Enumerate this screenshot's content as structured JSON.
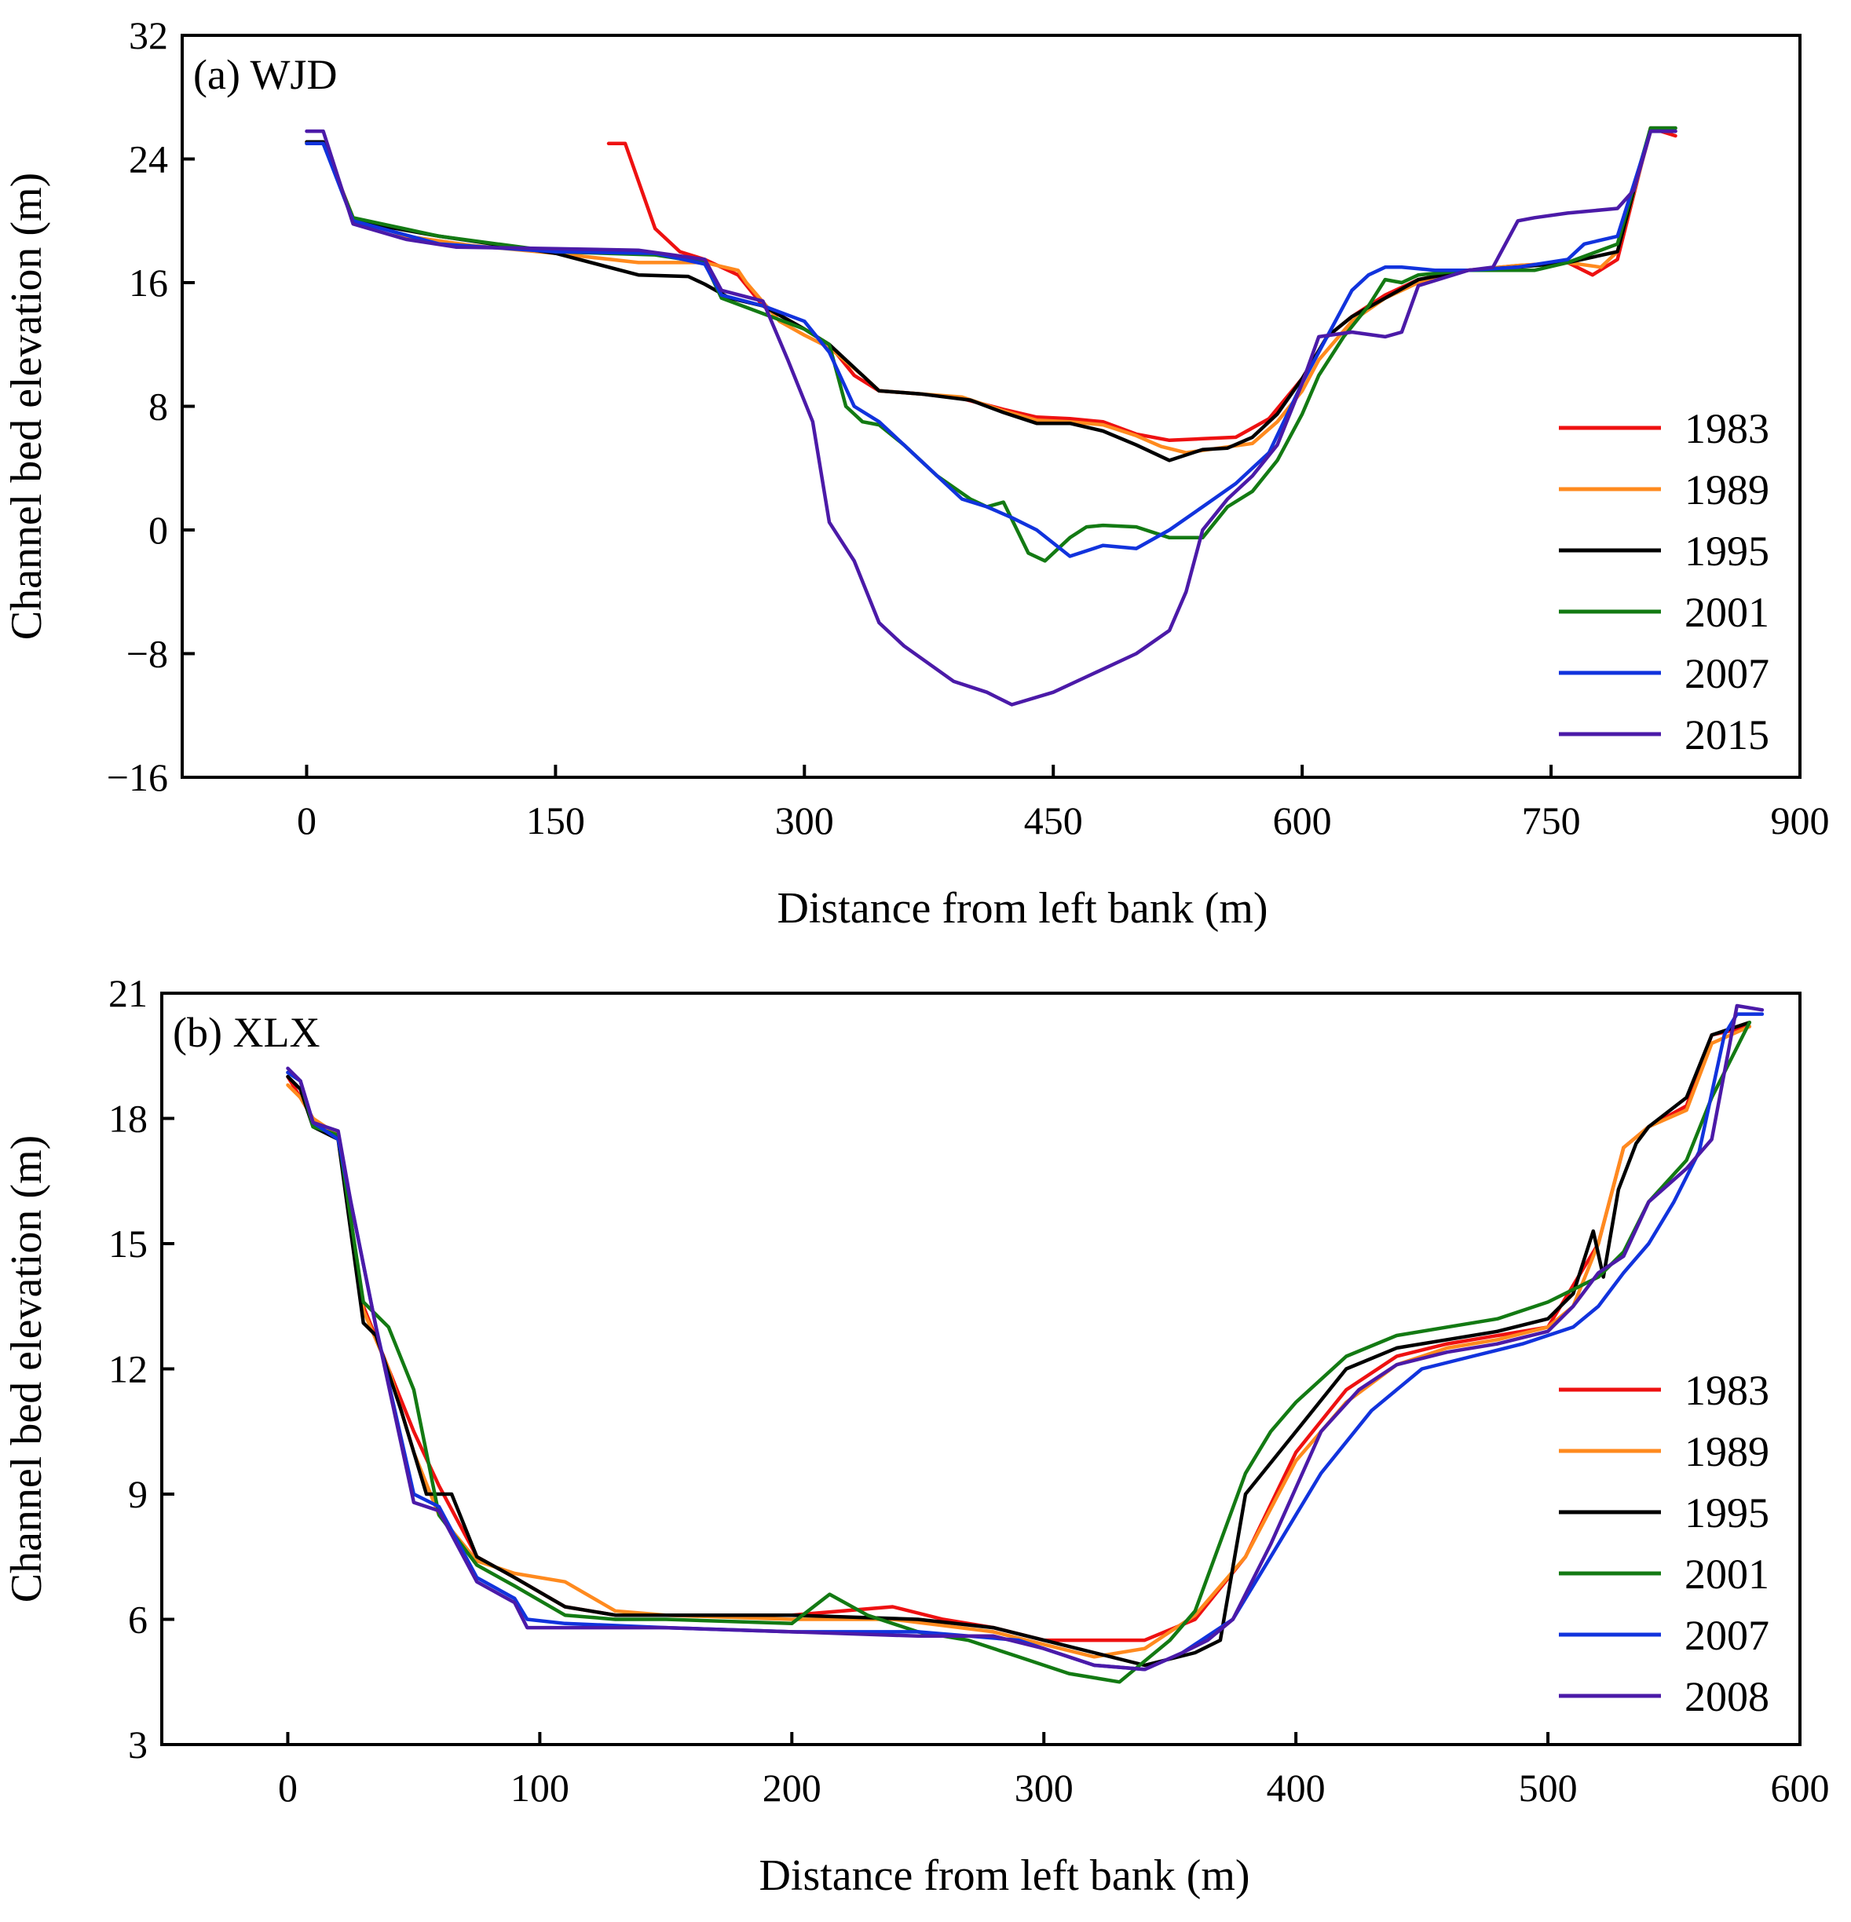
{
  "chart_data": [
    {
      "type": "line",
      "panel_label": "(a) WJD",
      "xlabel": "Distance from left bank (m)",
      "ylabel": "Channel bed elevation (m)",
      "xlim": [
        -75,
        900
      ],
      "ylim": [
        -16,
        32
      ],
      "xticks": [
        0,
        150,
        300,
        450,
        600,
        750,
        900
      ],
      "yticks": [
        -16,
        -8,
        0,
        8,
        16,
        24,
        32
      ],
      "xtick_labels": [
        "0",
        "150",
        "300",
        "450",
        "600",
        "750",
        "900"
      ],
      "ytick_labels": [
        "−16",
        "−8",
        "0",
        "8",
        "16",
        "24",
        "32"
      ],
      "grid": false,
      "legend_position": "lower-right",
      "series": [
        {
          "name": "1983",
          "color": "#ee1111",
          "x": [
            182,
            192,
            210,
            225,
            240,
            260,
            275,
            300,
            315,
            330,
            345,
            370,
            395,
            420,
            440,
            460,
            480,
            500,
            520,
            540,
            560,
            580,
            600,
            615,
            630,
            650,
            670,
            700,
            730,
            760,
            775,
            790,
            810,
            825
          ],
          "y": [
            25.0,
            25.0,
            19.5,
            18.0,
            17.5,
            16.5,
            14.5,
            13.0,
            12.0,
            10.0,
            9.0,
            8.8,
            8.5,
            7.8,
            7.3,
            7.2,
            7.0,
            6.2,
            5.8,
            5.9,
            6.0,
            7.2,
            9.8,
            12.5,
            13.8,
            15.2,
            16.2,
            16.8,
            17.1,
            17.3,
            16.5,
            17.5,
            26.0,
            25.5
          ]
        },
        {
          "name": "1989",
          "color": "#ff8a1e",
          "x": [
            0,
            10,
            28,
            60,
            100,
            150,
            200,
            240,
            260,
            265,
            285,
            300,
            315,
            335,
            345,
            370,
            395,
            420,
            440,
            460,
            480,
            500,
            515,
            530,
            550,
            570,
            585,
            600,
            610,
            630,
            650,
            670,
            700,
            730,
            760,
            780,
            790,
            810,
            825
          ],
          "y": [
            25.1,
            25.1,
            20.2,
            19.0,
            18.4,
            17.9,
            17.3,
            17.3,
            16.8,
            16.0,
            13.5,
            12.6,
            11.8,
            10.0,
            9.0,
            8.8,
            8.6,
            7.7,
            7.1,
            7.0,
            6.8,
            6.1,
            5.4,
            5.0,
            5.3,
            5.6,
            7.0,
            9.0,
            11.0,
            13.5,
            15.0,
            16.0,
            16.8,
            17.1,
            17.3,
            17.0,
            18.0,
            25.8,
            25.8
          ]
        },
        {
          "name": "1995",
          "color": "#000000",
          "x": [
            0,
            10,
            28,
            80,
            150,
            200,
            230,
            240,
            255,
            275,
            300,
            315,
            335,
            345,
            370,
            400,
            420,
            440,
            460,
            480,
            500,
            520,
            540,
            555,
            570,
            585,
            600,
            615,
            630,
            650,
            670,
            700,
            730,
            760,
            790,
            810,
            825
          ],
          "y": [
            25.1,
            25.1,
            20.0,
            19.0,
            17.9,
            16.5,
            16.4,
            15.9,
            15.0,
            14.5,
            13.0,
            12.0,
            10.0,
            9.0,
            8.8,
            8.4,
            7.6,
            6.9,
            6.9,
            6.4,
            5.5,
            4.5,
            5.2,
            5.3,
            6.0,
            7.5,
            9.8,
            12.5,
            13.8,
            15.0,
            16.2,
            16.8,
            17.0,
            17.3,
            18.0,
            26.0,
            26.0
          ]
        },
        {
          "name": "2001",
          "color": "#137a13",
          "x": [
            0,
            10,
            28,
            80,
            150,
            210,
            240,
            250,
            275,
            300,
            315,
            320,
            325,
            335,
            345,
            360,
            380,
            400,
            410,
            420,
            435,
            445,
            460,
            470,
            480,
            500,
            520,
            540,
            555,
            570,
            585,
            600,
            610,
            625,
            640,
            650,
            660,
            670,
            700,
            740,
            760,
            790,
            810,
            825
          ],
          "y": [
            25.0,
            25.0,
            20.2,
            19.0,
            18.0,
            17.8,
            17.3,
            15.0,
            14.0,
            13.0,
            12.0,
            10.0,
            8.0,
            7.0,
            6.8,
            5.5,
            3.5,
            2.0,
            1.5,
            1.8,
            -1.5,
            -2.0,
            -0.5,
            0.2,
            0.3,
            0.2,
            -0.5,
            -0.5,
            1.5,
            2.5,
            4.5,
            7.5,
            10.0,
            12.5,
            14.5,
            16.2,
            16.0,
            16.5,
            16.8,
            16.8,
            17.3,
            18.5,
            26.0,
            26.0
          ]
        },
        {
          "name": "2007",
          "color": "#1133dd",
          "x": [
            0,
            10,
            28,
            80,
            150,
            210,
            240,
            250,
            275,
            300,
            315,
            330,
            345,
            360,
            380,
            395,
            410,
            425,
            440,
            460,
            480,
            500,
            520,
            540,
            560,
            580,
            600,
            615,
            630,
            640,
            650,
            660,
            680,
            700,
            730,
            760,
            770,
            790,
            810,
            825
          ],
          "y": [
            25.0,
            25.0,
            20.0,
            18.5,
            18.0,
            17.9,
            17.2,
            15.2,
            14.5,
            13.5,
            11.5,
            8.0,
            7.0,
            5.5,
            3.5,
            2.0,
            1.5,
            0.8,
            0.0,
            -1.7,
            -1.0,
            -1.2,
            0.0,
            1.5,
            3.0,
            5.0,
            9.5,
            12.5,
            15.5,
            16.5,
            17.0,
            17.0,
            16.8,
            16.8,
            17.0,
            17.5,
            18.5,
            19.0,
            25.8,
            25.8
          ]
        },
        {
          "name": "2015",
          "color": "#4b1aa8",
          "x": [
            0,
            10,
            28,
            60,
            90,
            150,
            200,
            240,
            250,
            275,
            290,
            305,
            315,
            330,
            345,
            360,
            390,
            410,
            425,
            450,
            470,
            500,
            520,
            530,
            540,
            555,
            570,
            585,
            600,
            610,
            630,
            650,
            660,
            670,
            700,
            715,
            720,
            730,
            740,
            760,
            790,
            800,
            810,
            825
          ],
          "y": [
            25.8,
            25.8,
            19.8,
            18.8,
            18.3,
            18.2,
            18.1,
            17.5,
            15.5,
            14.8,
            11.0,
            7.0,
            0.5,
            -2.0,
            -6.0,
            -7.5,
            -9.8,
            -10.5,
            -11.3,
            -10.5,
            -9.5,
            -8.0,
            -6.5,
            -4.0,
            0.0,
            2.0,
            3.5,
            5.5,
            9.5,
            12.5,
            12.8,
            12.5,
            12.8,
            15.8,
            16.8,
            17.0,
            18.0,
            20.0,
            20.2,
            20.5,
            20.8,
            22.0,
            25.8,
            25.8
          ]
        }
      ]
    },
    {
      "type": "line",
      "panel_label": "(b) XLX",
      "xlabel": "Distance from left bank (m)",
      "ylabel": "Channel bed elevation (m)",
      "xlim": [
        -50,
        600
      ],
      "ylim": [
        3,
        21
      ],
      "xticks": [
        0,
        100,
        200,
        300,
        400,
        500,
        600
      ],
      "yticks": [
        3,
        6,
        9,
        12,
        15,
        18,
        21
      ],
      "xtick_labels": [
        "0",
        "100",
        "200",
        "300",
        "400",
        "500",
        "600"
      ],
      "ytick_labels": [
        "3",
        "6",
        "9",
        "12",
        "15",
        "18",
        "21"
      ],
      "grid": false,
      "legend_position": "lower-right",
      "series": [
        {
          "name": "1983",
          "color": "#ee1111",
          "x": [
            0,
            5,
            10,
            20,
            30,
            40,
            50,
            60,
            75,
            90,
            110,
            130,
            150,
            200,
            240,
            260,
            280,
            300,
            320,
            340,
            360,
            380,
            400,
            420,
            440,
            460,
            480,
            500,
            510,
            520,
            530,
            540,
            555,
            565,
            580
          ],
          "y": [
            19.0,
            18.5,
            18.0,
            17.5,
            13.5,
            12.0,
            10.5,
            9.2,
            7.5,
            7.0,
            6.3,
            6.1,
            6.1,
            6.1,
            6.3,
            6.0,
            5.8,
            5.5,
            5.5,
            5.5,
            6.0,
            7.5,
            10.0,
            11.5,
            12.3,
            12.6,
            12.8,
            13.0,
            14.0,
            15.0,
            17.3,
            17.8,
            18.3,
            20.0,
            20.2
          ]
        },
        {
          "name": "1989",
          "color": "#ff8a1e",
          "x": [
            0,
            5,
            10,
            20,
            30,
            40,
            50,
            60,
            75,
            90,
            110,
            130,
            150,
            200,
            240,
            280,
            300,
            320,
            340,
            360,
            380,
            400,
            420,
            440,
            460,
            480,
            500,
            510,
            520,
            530,
            540,
            555,
            565,
            580
          ],
          "y": [
            18.8,
            18.5,
            18.0,
            17.6,
            13.4,
            12.0,
            10.0,
            8.5,
            7.4,
            7.1,
            6.9,
            6.2,
            6.1,
            6.0,
            6.0,
            5.7,
            5.4,
            5.1,
            5.3,
            6.1,
            7.5,
            9.8,
            11.2,
            12.1,
            12.5,
            12.7,
            13.0,
            13.5,
            15.0,
            17.3,
            17.8,
            18.2,
            19.8,
            20.2
          ]
        },
        {
          "name": "1995",
          "color": "#000000",
          "x": [
            0,
            5,
            10,
            20,
            30,
            35,
            45,
            55,
            65,
            75,
            90,
            110,
            130,
            150,
            200,
            250,
            280,
            300,
            320,
            340,
            360,
            370,
            380,
            400,
            420,
            440,
            460,
            480,
            500,
            510,
            518,
            522,
            528,
            535,
            540,
            555,
            565,
            580
          ],
          "y": [
            19.0,
            18.7,
            17.8,
            17.5,
            13.1,
            12.8,
            11.0,
            9.0,
            9.0,
            7.5,
            7.0,
            6.3,
            6.1,
            6.1,
            6.1,
            6.0,
            5.8,
            5.5,
            5.2,
            4.9,
            5.2,
            5.5,
            9.0,
            10.5,
            12.0,
            12.5,
            12.7,
            12.9,
            13.2,
            13.8,
            15.3,
            14.2,
            16.3,
            17.4,
            17.8,
            18.5,
            20.0,
            20.3
          ]
        },
        {
          "name": "2001",
          "color": "#137a13",
          "x": [
            0,
            5,
            10,
            20,
            30,
            40,
            50,
            60,
            75,
            90,
            110,
            130,
            150,
            200,
            215,
            230,
            250,
            270,
            290,
            310,
            330,
            340,
            350,
            360,
            380,
            390,
            400,
            420,
            440,
            460,
            480,
            500,
            520,
            530,
            540,
            555,
            565,
            580
          ],
          "y": [
            19.1,
            18.9,
            17.8,
            17.6,
            13.6,
            13.0,
            11.5,
            8.5,
            7.3,
            6.8,
            6.1,
            6.0,
            6.0,
            5.9,
            6.6,
            6.1,
            5.7,
            5.5,
            5.1,
            4.7,
            4.5,
            5.0,
            5.5,
            6.2,
            9.5,
            10.5,
            11.2,
            12.3,
            12.8,
            13.0,
            13.2,
            13.6,
            14.2,
            14.8,
            16.0,
            17.0,
            18.5,
            20.3
          ]
        },
        {
          "name": "2007",
          "color": "#1133dd",
          "x": [
            0,
            5,
            10,
            20,
            25,
            35,
            50,
            60,
            75,
            90,
            95,
            110,
            150,
            200,
            250,
            290,
            300,
            320,
            340,
            355,
            365,
            375,
            390,
            410,
            430,
            450,
            470,
            490,
            510,
            520,
            530,
            540,
            550,
            560,
            570,
            575,
            585
          ],
          "y": [
            19.1,
            18.9,
            17.9,
            17.5,
            16.0,
            13.0,
            9.0,
            8.7,
            7.0,
            6.5,
            6.0,
            5.9,
            5.8,
            5.7,
            5.7,
            5.5,
            5.3,
            4.9,
            4.8,
            5.2,
            5.6,
            6.0,
            7.5,
            9.5,
            11.0,
            12.0,
            12.3,
            12.6,
            13.0,
            13.5,
            14.3,
            15.0,
            16.0,
            17.2,
            20.0,
            20.5,
            20.5
          ]
        },
        {
          "name": "2008",
          "color": "#4b1aa8",
          "x": [
            0,
            5,
            10,
            20,
            25,
            35,
            50,
            60,
            75,
            90,
            95,
            110,
            150,
            200,
            250,
            280,
            300,
            320,
            340,
            355,
            365,
            375,
            390,
            410,
            425,
            440,
            460,
            480,
            500,
            510,
            520,
            530,
            540,
            555,
            565,
            575,
            585
          ],
          "y": [
            19.2,
            18.9,
            17.9,
            17.7,
            16.0,
            13.0,
            8.8,
            8.6,
            6.9,
            6.4,
            5.8,
            5.8,
            5.8,
            5.7,
            5.6,
            5.6,
            5.3,
            4.9,
            4.8,
            5.2,
            5.5,
            6.0,
            7.8,
            10.5,
            11.5,
            12.1,
            12.4,
            12.6,
            12.9,
            13.5,
            14.3,
            14.7,
            16.0,
            16.8,
            17.5,
            20.7,
            20.6
          ]
        }
      ]
    }
  ]
}
